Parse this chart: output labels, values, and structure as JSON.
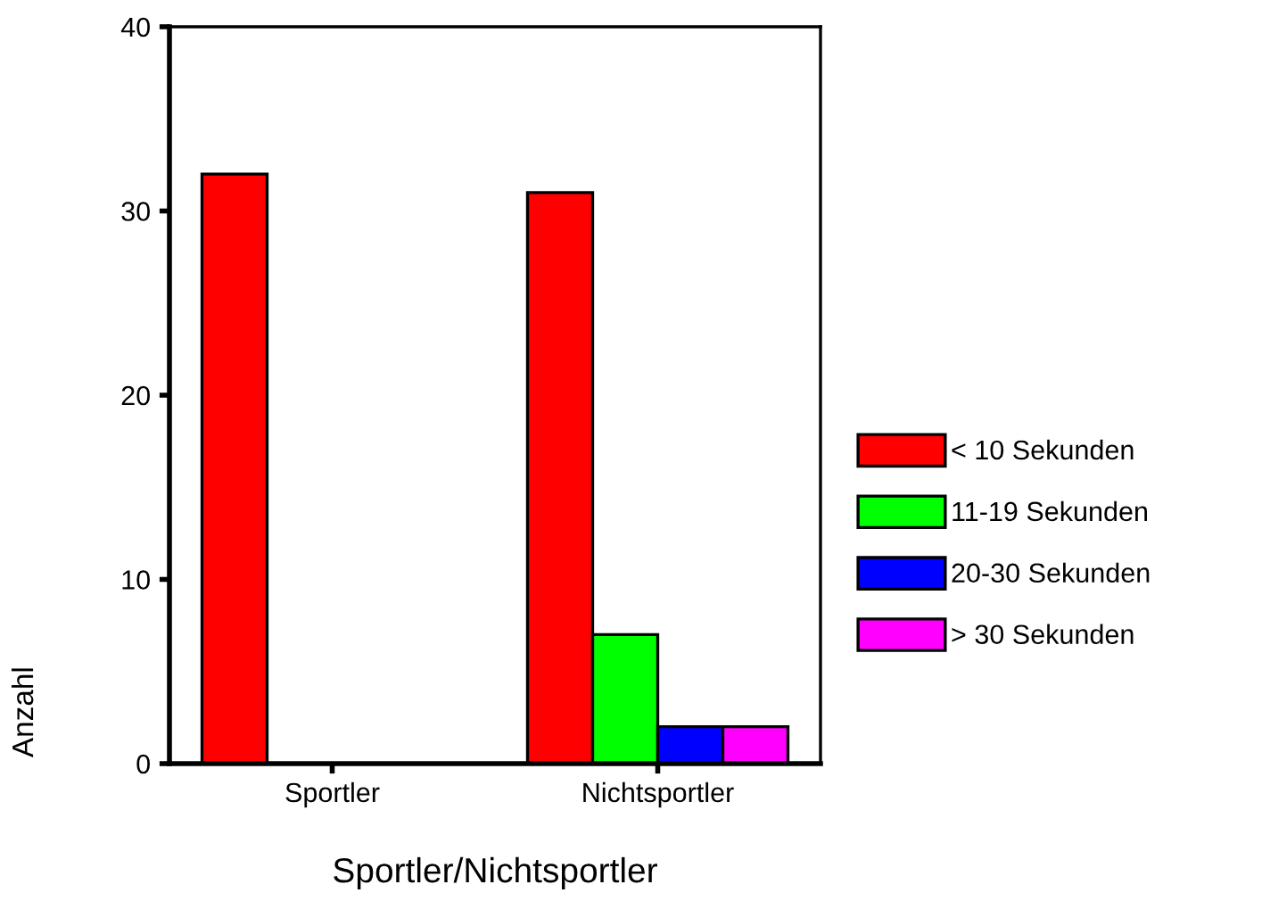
{
  "chart_data": {
    "type": "bar",
    "xlabel": "Sportler/Nichtsportler",
    "ylabel": "Anzahl",
    "categories": [
      "Sportler",
      "Nichtsportler"
    ],
    "series": [
      {
        "name": "< 10 Sekunden",
        "color": "#ff0000",
        "values": [
          32,
          31
        ]
      },
      {
        "name": "11-19 Sekunden",
        "color": "#00ff00",
        "values": [
          null,
          7
        ]
      },
      {
        "name": "20-30 Sekunden",
        "color": "#0000ff",
        "values": [
          null,
          2
        ]
      },
      {
        "name": "> 30 Sekunden",
        "color": "#ff00ff",
        "values": [
          null,
          2
        ]
      }
    ],
    "ylim": [
      0,
      40
    ],
    "yticks": [
      0,
      10,
      20,
      30,
      40
    ],
    "grid": false,
    "legend": "right"
  }
}
